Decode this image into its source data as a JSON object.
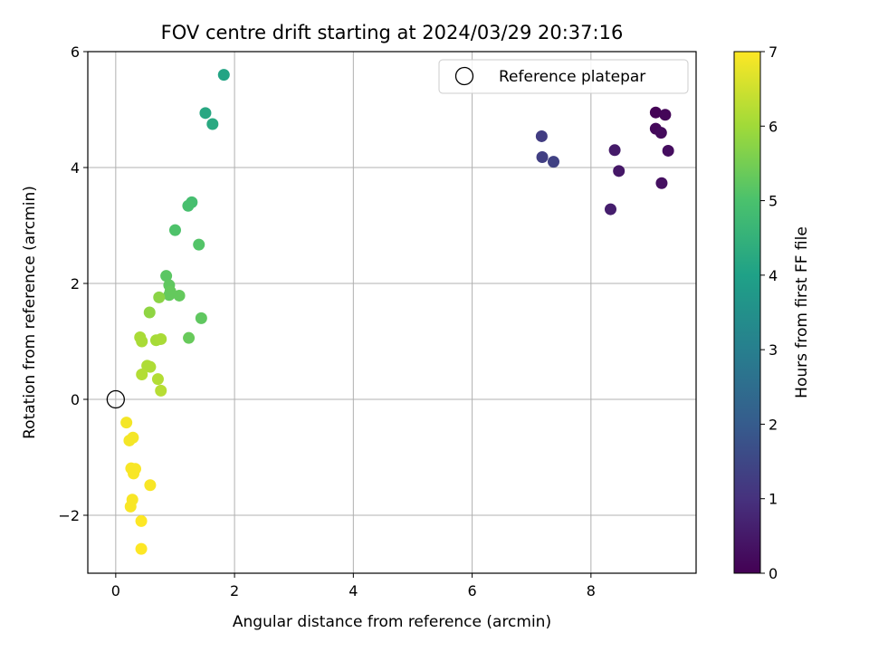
{
  "chart_data": {
    "type": "scatter",
    "title": "FOV centre drift starting at 2024/03/29 20:37:16",
    "xlabel": "Angular distance from reference (arcmin)",
    "ylabel": "Rotation from reference (arcmin)",
    "xlim": [
      -0.47,
      9.77
    ],
    "ylim": [
      -3.0,
      6.0
    ],
    "xticks": [
      0,
      2,
      4,
      6,
      8
    ],
    "xtick_labels": [
      "0",
      "2",
      "4",
      "6",
      "8"
    ],
    "yticks": [
      -2,
      0,
      2,
      4,
      6
    ],
    "ytick_labels": [
      "−2",
      "0",
      "2",
      "4",
      "6"
    ],
    "grid": true,
    "legend": {
      "location": "top-right",
      "entries": [
        "Reference platepar"
      ]
    },
    "reference_point": {
      "x": 0,
      "y": 0,
      "marker": "open-circle"
    },
    "colorbar": {
      "label": "Hours from first FF file",
      "range": [
        0,
        7
      ],
      "ticks": [
        "0",
        "1",
        "2",
        "3",
        "4",
        "5",
        "6",
        "7"
      ],
      "colormap": "viridis"
    },
    "points": [
      {
        "x": 9.09,
        "y": 4.95,
        "c": 0.05
      },
      {
        "x": 9.25,
        "y": 4.91,
        "c": 0.1
      },
      {
        "x": 9.09,
        "y": 4.67,
        "c": 0.15
      },
      {
        "x": 9.18,
        "y": 4.6,
        "c": 0.2
      },
      {
        "x": 9.3,
        "y": 4.29,
        "c": 0.25
      },
      {
        "x": 9.19,
        "y": 3.73,
        "c": 0.3
      },
      {
        "x": 8.47,
        "y": 3.94,
        "c": 0.45
      },
      {
        "x": 8.4,
        "y": 4.3,
        "c": 0.5
      },
      {
        "x": 8.33,
        "y": 3.28,
        "c": 0.6
      },
      {
        "x": 7.17,
        "y": 4.54,
        "c": 1.25
      },
      {
        "x": 7.18,
        "y": 4.18,
        "c": 1.3
      },
      {
        "x": 7.37,
        "y": 4.1,
        "c": 1.35
      },
      {
        "x": 1.82,
        "y": 5.6,
        "c": 4.1
      },
      {
        "x": 1.51,
        "y": 4.94,
        "c": 4.2
      },
      {
        "x": 1.63,
        "y": 4.75,
        "c": 4.25
      },
      {
        "x": 1.28,
        "y": 3.4,
        "c": 4.9
      },
      {
        "x": 1.22,
        "y": 3.34,
        "c": 4.95
      },
      {
        "x": 1.0,
        "y": 2.92,
        "c": 5.05
      },
      {
        "x": 1.4,
        "y": 2.67,
        "c": 5.1
      },
      {
        "x": 0.85,
        "y": 2.13,
        "c": 5.2
      },
      {
        "x": 0.9,
        "y": 1.97,
        "c": 5.25
      },
      {
        "x": 0.92,
        "y": 1.86,
        "c": 5.3
      },
      {
        "x": 0.9,
        "y": 1.8,
        "c": 5.3
      },
      {
        "x": 1.07,
        "y": 1.79,
        "c": 5.3
      },
      {
        "x": 1.44,
        "y": 1.4,
        "c": 5.25
      },
      {
        "x": 1.23,
        "y": 1.06,
        "c": 5.35
      },
      {
        "x": 0.73,
        "y": 1.76,
        "c": 5.75
      },
      {
        "x": 0.57,
        "y": 1.5,
        "c": 5.8
      },
      {
        "x": 0.41,
        "y": 1.07,
        "c": 6.1
      },
      {
        "x": 0.44,
        "y": 1.0,
        "c": 6.1
      },
      {
        "x": 0.68,
        "y": 1.02,
        "c": 6.05
      },
      {
        "x": 0.76,
        "y": 1.04,
        "c": 6.1
      },
      {
        "x": 0.53,
        "y": 0.58,
        "c": 6.15
      },
      {
        "x": 0.58,
        "y": 0.56,
        "c": 6.15
      },
      {
        "x": 0.44,
        "y": 0.43,
        "c": 6.2
      },
      {
        "x": 0.71,
        "y": 0.35,
        "c": 6.2
      },
      {
        "x": 0.76,
        "y": 0.15,
        "c": 6.25
      },
      {
        "x": 0.18,
        "y": -0.4,
        "c": 6.9
      },
      {
        "x": 0.23,
        "y": -0.71,
        "c": 6.9
      },
      {
        "x": 0.29,
        "y": -0.66,
        "c": 6.9
      },
      {
        "x": 0.26,
        "y": -1.19,
        "c": 6.95
      },
      {
        "x": 0.33,
        "y": -1.2,
        "c": 6.95
      },
      {
        "x": 0.3,
        "y": -1.28,
        "c": 6.95
      },
      {
        "x": 0.58,
        "y": -1.48,
        "c": 6.95
      },
      {
        "x": 0.28,
        "y": -1.73,
        "c": 6.95
      },
      {
        "x": 0.25,
        "y": -1.85,
        "c": 6.95
      },
      {
        "x": 0.43,
        "y": -2.1,
        "c": 7.0
      },
      {
        "x": 0.43,
        "y": -2.58,
        "c": 7.0
      }
    ]
  }
}
